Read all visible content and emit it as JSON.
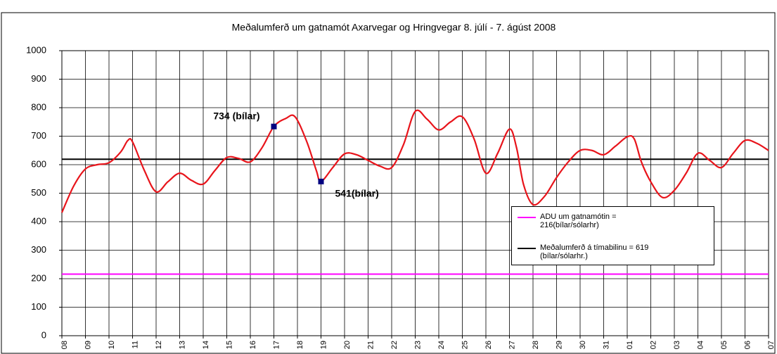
{
  "chart_data": {
    "type": "line",
    "title": "Meðalumferð um gatnamót Axarvegar og Hringvegar 8. júlí - 7. ágúst 2008",
    "xlim": [
      0,
      30
    ],
    "xticks": [
      {
        "value": 0,
        "label": "08"
      },
      {
        "value": 1,
        "label": "09"
      },
      {
        "value": 2,
        "label": "10"
      },
      {
        "value": 3,
        "label": "11"
      },
      {
        "value": 4,
        "label": "12"
      },
      {
        "value": 5,
        "label": "13"
      },
      {
        "value": 6,
        "label": "14"
      },
      {
        "value": 7,
        "label": "15"
      },
      {
        "value": 8,
        "label": "16"
      },
      {
        "value": 9,
        "label": "17"
      },
      {
        "value": 10,
        "label": "18"
      },
      {
        "value": 11,
        "label": "19"
      },
      {
        "value": 12,
        "label": "20"
      },
      {
        "value": 13,
        "label": "21"
      },
      {
        "value": 14,
        "label": "22"
      },
      {
        "value": 15,
        "label": "23"
      },
      {
        "value": 16,
        "label": "24"
      },
      {
        "value": 17,
        "label": "25"
      },
      {
        "value": 18,
        "label": "26"
      },
      {
        "value": 19,
        "label": "27"
      },
      {
        "value": 20,
        "label": "28"
      },
      {
        "value": 21,
        "label": "29"
      },
      {
        "value": 22,
        "label": "30"
      },
      {
        "value": 23,
        "label": "31"
      },
      {
        "value": 24,
        "label": "01"
      },
      {
        "value": 25,
        "label": "02"
      },
      {
        "value": 26,
        "label": "03"
      },
      {
        "value": 27,
        "label": "04"
      },
      {
        "value": 28,
        "label": "05"
      },
      {
        "value": 29,
        "label": "06"
      },
      {
        "value": 30,
        "label": "07"
      }
    ],
    "ylim": [
      0,
      1000
    ],
    "yticks": [
      0,
      100,
      200,
      300,
      400,
      500,
      600,
      700,
      800,
      900,
      1000
    ],
    "grid": true,
    "series": [
      {
        "color": "#e8141b",
        "x": [
          0,
          0.5,
          1,
          1.5,
          2,
          2.5,
          2.8,
          3,
          3.5,
          4,
          4.5,
          5,
          5.5,
          6,
          6.5,
          7,
          7.5,
          8,
          8.5,
          9,
          9.5,
          9.9,
          10.4,
          10.8,
          11,
          11.5,
          12,
          12.5,
          13,
          13.5,
          14,
          14.5,
          15,
          15.5,
          16,
          16.5,
          17,
          17.5,
          18,
          18.5,
          19,
          19.3,
          19.6,
          20,
          20.5,
          21,
          21.5,
          22,
          22.5,
          23,
          23.5,
          24,
          24.3,
          24.6,
          25,
          25.5,
          26,
          26.5,
          27,
          27.5,
          28,
          28.5,
          29,
          29.5,
          30
        ],
        "values": [
          432,
          525,
          585,
          600,
          607,
          645,
          685,
          680,
          580,
          505,
          540,
          570,
          545,
          532,
          580,
          625,
          622,
          610,
          660,
          734,
          762,
          768,
          680,
          580,
          541,
          590,
          638,
          635,
          615,
          595,
          590,
          670,
          787,
          760,
          722,
          750,
          768,
          690,
          570,
          640,
          725,
          660,
          530,
          460,
          490,
          555,
          610,
          650,
          650,
          635,
          665,
          698,
          690,
          610,
          540,
          485,
          510,
          570,
          640,
          615,
          590,
          640,
          685,
          675,
          650
        ]
      }
    ],
    "hlines": [
      {
        "name": "ADU um gatnamótin =\n216(bílar/sólarhr)",
        "value": 216,
        "color": "#ff00ff"
      },
      {
        "name": "Meðalumferð á tímabilinu = 619\n(bílar/sólarhr.)",
        "value": 619,
        "color": "#000000"
      }
    ],
    "annotations": [
      {
        "text": "734 (bílar)",
        "x": 9,
        "y": 734
      },
      {
        "text": "541(bílar)",
        "x": 11,
        "y": 541
      }
    ]
  }
}
